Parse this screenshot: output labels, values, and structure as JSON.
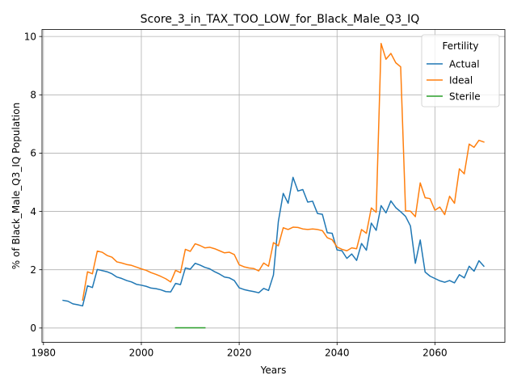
{
  "chart_data": {
    "type": "line",
    "title": "Score_3_in_TAX_TOO_LOW_for_Black_Male_Q3_IQ",
    "xlabel": "Years",
    "ylabel": "% of Black_Male_Q3_IQ Population",
    "xlim": [
      1979.7,
      2074.3
    ],
    "ylim": [
      -0.49,
      10.24
    ],
    "xticks": [
      1980,
      2000,
      2020,
      2040,
      2060
    ],
    "yticks": [
      0,
      2,
      4,
      6,
      8,
      10
    ],
    "grid": true,
    "legend": {
      "title": "Fertility",
      "placement": "top-right"
    },
    "series": [
      {
        "name": "Actual",
        "color": "#1f77b4",
        "points": [
          [
            1984,
            0.95
          ],
          [
            1985,
            0.92
          ],
          [
            1986,
            0.83
          ],
          [
            1987,
            0.8
          ],
          [
            1988,
            0.76
          ],
          [
            1989,
            1.45
          ],
          [
            1990,
            1.39
          ],
          [
            1991,
            2.01
          ],
          [
            1992,
            1.97
          ],
          [
            1993,
            1.93
          ],
          [
            1994,
            1.86
          ],
          [
            1995,
            1.75
          ],
          [
            1996,
            1.7
          ],
          [
            1997,
            1.63
          ],
          [
            1998,
            1.58
          ],
          [
            1999,
            1.5
          ],
          [
            2000,
            1.47
          ],
          [
            2001,
            1.43
          ],
          [
            2002,
            1.37
          ],
          [
            2003,
            1.35
          ],
          [
            2004,
            1.31
          ],
          [
            2005,
            1.25
          ],
          [
            2006,
            1.24
          ],
          [
            2007,
            1.53
          ],
          [
            2008,
            1.49
          ],
          [
            2009,
            2.06
          ],
          [
            2010,
            2.02
          ],
          [
            2011,
            2.22
          ],
          [
            2012,
            2.16
          ],
          [
            2013,
            2.08
          ],
          [
            2014,
            2.03
          ],
          [
            2015,
            1.93
          ],
          [
            2016,
            1.85
          ],
          [
            2017,
            1.75
          ],
          [
            2018,
            1.72
          ],
          [
            2019,
            1.63
          ],
          [
            2020,
            1.38
          ],
          [
            2021,
            1.32
          ],
          [
            2022,
            1.28
          ],
          [
            2023,
            1.25
          ],
          [
            2024,
            1.21
          ],
          [
            2025,
            1.36
          ],
          [
            2026,
            1.29
          ],
          [
            2027,
            1.82
          ],
          [
            2028,
            3.65
          ],
          [
            2029,
            4.62
          ],
          [
            2030,
            4.28
          ],
          [
            2031,
            5.17
          ],
          [
            2032,
            4.7
          ],
          [
            2033,
            4.75
          ],
          [
            2034,
            4.32
          ],
          [
            2035,
            4.35
          ],
          [
            2036,
            3.93
          ],
          [
            2037,
            3.9
          ],
          [
            2038,
            3.27
          ],
          [
            2039,
            3.25
          ],
          [
            2040,
            2.68
          ],
          [
            2041,
            2.65
          ],
          [
            2042,
            2.39
          ],
          [
            2043,
            2.54
          ],
          [
            2044,
            2.32
          ],
          [
            2045,
            2.9
          ],
          [
            2046,
            2.67
          ],
          [
            2047,
            3.6
          ],
          [
            2048,
            3.35
          ],
          [
            2049,
            4.2
          ],
          [
            2050,
            3.95
          ],
          [
            2051,
            4.36
          ],
          [
            2052,
            4.13
          ],
          [
            2053,
            3.99
          ],
          [
            2054,
            3.83
          ],
          [
            2055,
            3.5
          ],
          [
            2056,
            2.22
          ],
          [
            2057,
            3.02
          ],
          [
            2058,
            1.92
          ],
          [
            2059,
            1.78
          ],
          [
            2060,
            1.7
          ],
          [
            2061,
            1.62
          ],
          [
            2062,
            1.57
          ],
          [
            2063,
            1.63
          ],
          [
            2064,
            1.55
          ],
          [
            2065,
            1.83
          ],
          [
            2066,
            1.72
          ],
          [
            2067,
            2.12
          ],
          [
            2068,
            1.95
          ],
          [
            2069,
            2.31
          ],
          [
            2070,
            2.12
          ]
        ]
      },
      {
        "name": "Ideal",
        "color": "#ff7f0e",
        "points": [
          [
            1988,
            0.96
          ],
          [
            1989,
            1.93
          ],
          [
            1990,
            1.86
          ],
          [
            1991,
            2.64
          ],
          [
            1992,
            2.6
          ],
          [
            1993,
            2.49
          ],
          [
            1994,
            2.43
          ],
          [
            1995,
            2.27
          ],
          [
            1996,
            2.23
          ],
          [
            1997,
            2.18
          ],
          [
            1998,
            2.15
          ],
          [
            1999,
            2.09
          ],
          [
            2000,
            2.03
          ],
          [
            2001,
            1.98
          ],
          [
            2002,
            1.9
          ],
          [
            2003,
            1.84
          ],
          [
            2004,
            1.77
          ],
          [
            2005,
            1.69
          ],
          [
            2006,
            1.58
          ],
          [
            2007,
            1.98
          ],
          [
            2008,
            1.9
          ],
          [
            2009,
            2.7
          ],
          [
            2010,
            2.63
          ],
          [
            2011,
            2.89
          ],
          [
            2012,
            2.83
          ],
          [
            2013,
            2.75
          ],
          [
            2014,
            2.77
          ],
          [
            2015,
            2.72
          ],
          [
            2016,
            2.65
          ],
          [
            2017,
            2.58
          ],
          [
            2018,
            2.6
          ],
          [
            2019,
            2.52
          ],
          [
            2020,
            2.17
          ],
          [
            2021,
            2.1
          ],
          [
            2022,
            2.06
          ],
          [
            2023,
            2.04
          ],
          [
            2024,
            1.96
          ],
          [
            2025,
            2.23
          ],
          [
            2026,
            2.12
          ],
          [
            2027,
            2.93
          ],
          [
            2028,
            2.82
          ],
          [
            2029,
            3.44
          ],
          [
            2030,
            3.38
          ],
          [
            2031,
            3.46
          ],
          [
            2032,
            3.45
          ],
          [
            2033,
            3.4
          ],
          [
            2034,
            3.38
          ],
          [
            2035,
            3.4
          ],
          [
            2036,
            3.38
          ],
          [
            2037,
            3.34
          ],
          [
            2038,
            3.1
          ],
          [
            2039,
            3.03
          ],
          [
            2040,
            2.78
          ],
          [
            2041,
            2.7
          ],
          [
            2042,
            2.65
          ],
          [
            2043,
            2.75
          ],
          [
            2044,
            2.72
          ],
          [
            2045,
            3.38
          ],
          [
            2046,
            3.25
          ],
          [
            2047,
            4.12
          ],
          [
            2048,
            3.97
          ],
          [
            2049,
            9.76
          ],
          [
            2050,
            9.22
          ],
          [
            2051,
            9.42
          ],
          [
            2052,
            9.1
          ],
          [
            2053,
            8.96
          ],
          [
            2054,
            4.02
          ],
          [
            2055,
            4.01
          ],
          [
            2056,
            3.82
          ],
          [
            2057,
            4.98
          ],
          [
            2058,
            4.47
          ],
          [
            2059,
            4.44
          ],
          [
            2060,
            4.04
          ],
          [
            2061,
            4.15
          ],
          [
            2062,
            3.89
          ],
          [
            2063,
            4.52
          ],
          [
            2064,
            4.28
          ],
          [
            2065,
            5.46
          ],
          [
            2066,
            5.29
          ],
          [
            2067,
            6.31
          ],
          [
            2068,
            6.2
          ],
          [
            2069,
            6.44
          ],
          [
            2070,
            6.38
          ]
        ]
      },
      {
        "name": "Sterile",
        "color": "#2ca02c",
        "points": [
          [
            2007,
            0.01
          ],
          [
            2008,
            0.01
          ],
          [
            2009,
            0.01
          ],
          [
            2010,
            0.01
          ],
          [
            2011,
            0.01
          ],
          [
            2012,
            0.01
          ],
          [
            2013,
            0.01
          ]
        ]
      }
    ]
  }
}
